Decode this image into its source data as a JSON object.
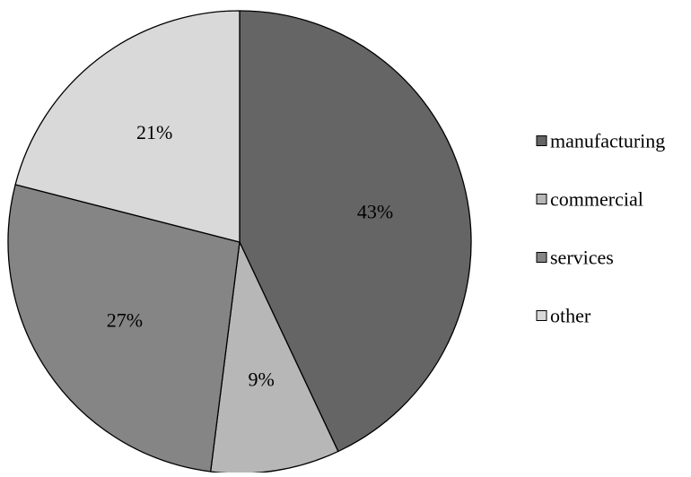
{
  "chart_data": {
    "type": "pie",
    "title": "",
    "categories": [
      "manufacturing",
      "commercial",
      "services",
      "other"
    ],
    "values": [
      43,
      9,
      27,
      21
    ],
    "labels": [
      "43%",
      "9%",
      "27%",
      "21%"
    ],
    "colors": [
      "#656565",
      "#b7b7b7",
      "#858585",
      "#d9d9d9"
    ],
    "start_angle_deg": 0,
    "direction": "clockwise",
    "legend": {
      "position": "right",
      "entries": [
        "manufacturing",
        "commercial",
        "services",
        "other"
      ]
    }
  }
}
